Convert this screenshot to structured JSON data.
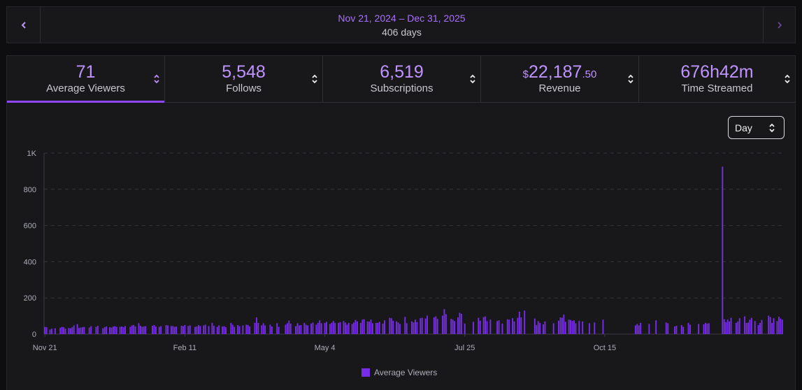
{
  "date_nav": {
    "range": "Nov 21, 2024 – Dec 31, 2025",
    "days": "406 days",
    "prev_icon": "chevron-left-icon",
    "next_icon": "chevron-right-icon"
  },
  "tabs": [
    {
      "id": "avg-viewers",
      "value": "71",
      "label": "Average Viewers",
      "active": true
    },
    {
      "id": "follows",
      "value": "5,548",
      "label": "Follows",
      "active": false
    },
    {
      "id": "subscriptions",
      "value": "6,519",
      "label": "Subscriptions",
      "active": false
    },
    {
      "id": "revenue",
      "currency": "$",
      "value": "22,187",
      "cents": ".50",
      "label": "Revenue",
      "active": false
    },
    {
      "id": "time-streamed",
      "value": "676h42m",
      "label": "Time Streamed",
      "active": false
    }
  ],
  "granularity": {
    "selected": "Day",
    "icon": "sort-arrows-icon"
  },
  "colors": {
    "accent": "#9147ff",
    "bar": "#772ce8",
    "accent_text": "#bf94ff"
  },
  "chart_data": {
    "type": "bar",
    "title": "",
    "xlabel": "",
    "ylabel": "",
    "ylim": [
      0,
      1000
    ],
    "y_ticks": [
      {
        "value": 0,
        "label": "0"
      },
      {
        "value": 200,
        "label": "200"
      },
      {
        "value": 400,
        "label": "400"
      },
      {
        "value": 600,
        "label": "600"
      },
      {
        "value": 800,
        "label": "800"
      },
      {
        "value": 1000,
        "label": "1K"
      }
    ],
    "x_ticks": [
      "Nov 21",
      "Feb 11",
      "May 4",
      "Jul 25",
      "Oct 15"
    ],
    "grid": true,
    "legend": "bottom-center",
    "series": [
      {
        "name": "Average Viewers",
        "start": "2024-11-21",
        "values": [
          40,
          38,
          0,
          25,
          30,
          0,
          32,
          0,
          0,
          35,
          40,
          38,
          30,
          0,
          34,
          32,
          38,
          48,
          0,
          55,
          34,
          36,
          38,
          40,
          0,
          0,
          36,
          44,
          0,
          0,
          40,
          46,
          0,
          0,
          32,
          38,
          42,
          0,
          38,
          36,
          42,
          44,
          40,
          0,
          40,
          42,
          38,
          45,
          0,
          0,
          40,
          48,
          50,
          42,
          0,
          60,
          46,
          40,
          42,
          44,
          0,
          0,
          0,
          46,
          50,
          42,
          0,
          40,
          44,
          0,
          0,
          50,
          48,
          0,
          45,
          44,
          40,
          42,
          0,
          0,
          46,
          44,
          50,
          0,
          45,
          48,
          0,
          0,
          40,
          42,
          50,
          44,
          0,
          48,
          52,
          0,
          44,
          0,
          62,
          46,
          0,
          40,
          48,
          0,
          42,
          44,
          38,
          0,
          0,
          62,
          52,
          40,
          0,
          50,
          44,
          0,
          48,
          0,
          52,
          50,
          42,
          0,
          0,
          62,
          92,
          62,
          0,
          48,
          60,
          48,
          0,
          0,
          52,
          42,
          0,
          0,
          60,
          40,
          0,
          0,
          0,
          52,
          60,
          74,
          58,
          0,
          0,
          44,
          60,
          48,
          50,
          0,
          62,
          52,
          48,
          0,
          58,
          64,
          0,
          52,
          62,
          76,
          60,
          0,
          62,
          68,
          0,
          56,
          62,
          72,
          62,
          0,
          62,
          66,
          0,
          72,
          64,
          52,
          62,
          0,
          56,
          64,
          78,
          70,
          0,
          62,
          80,
          82,
          0,
          70,
          68,
          80,
          60,
          0,
          62,
          62,
          68,
          0,
          58,
          76,
          0,
          0,
          90,
          88,
          74,
          0,
          70,
          64,
          56,
          0,
          0,
          95,
          60,
          0,
          0,
          70,
          64,
          80,
          66,
          0,
          88,
          90,
          0,
          86,
          102,
          0,
          0,
          0,
          92,
          98,
          84,
          0,
          0,
          102,
          138,
          110,
          0,
          0,
          84,
          80,
          72,
          0,
          92,
          118,
          112,
          0,
          58,
          0,
          0,
          0,
          0,
          68,
          0,
          0,
          90,
          74,
          0,
          94,
          98,
          72,
          0,
          80,
          0,
          0,
          0,
          72,
          76,
          0,
          58,
          0,
          0,
          82,
          80,
          0,
          88,
          70,
          0,
          90,
          124,
          92,
          0,
          130,
          0,
          0,
          0,
          0,
          0,
          86,
          50,
          72,
          62,
          0,
          54,
          70,
          0,
          0,
          0,
          0,
          60,
          0,
          0,
          74,
          92,
          90,
          108,
          68,
          0,
          80,
          78,
          72,
          76,
          60,
          0,
          72,
          0,
          70,
          0,
          0,
          0,
          60,
          0,
          0,
          64,
          0,
          0,
          0,
          0,
          80,
          0,
          0,
          0,
          0,
          0,
          0,
          0,
          0,
          0,
          0,
          0,
          0,
          0,
          0,
          0,
          0,
          0,
          0,
          48,
          56,
          48,
          62,
          0,
          0,
          0,
          0,
          56,
          0,
          0,
          0,
          76,
          0,
          0,
          0,
          0,
          0,
          64,
          60,
          0,
          0,
          0,
          42,
          46,
          0,
          0,
          50,
          40,
          0,
          0,
          62,
          52,
          0,
          0,
          0,
          0,
          56,
          0,
          0,
          54,
          62,
          58,
          60,
          0,
          0,
          0,
          0,
          0,
          0,
          0,
          925,
          82,
          66,
          80,
          70,
          90,
          0,
          0,
          62,
          70,
          88,
          0,
          0,
          98,
          62,
          64,
          80,
          90,
          0,
          72,
          0,
          50,
          62,
          78,
          0,
          0,
          0,
          102,
          94,
          62,
          88,
          0,
          72,
          96,
          86,
          80
        ]
      }
    ]
  }
}
